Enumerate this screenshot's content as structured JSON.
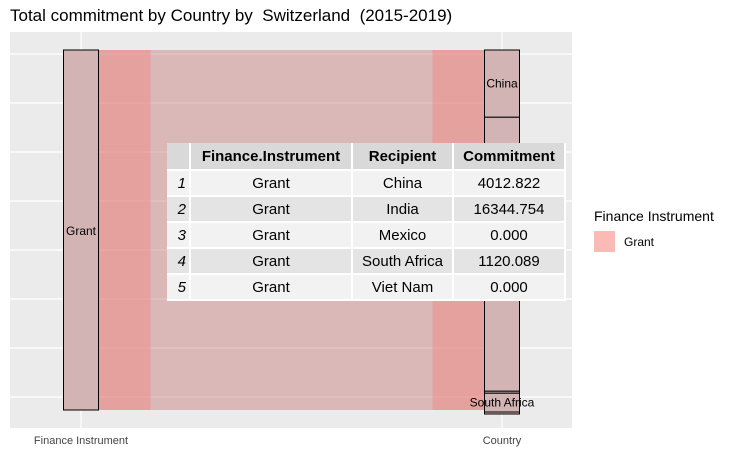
{
  "chart_data": {
    "type": "alluvial",
    "title": "Total commitment by Country by  Switzerland  (2015-2019)",
    "axes": [
      "Finance Instrument",
      "Country"
    ],
    "strata": {
      "Finance Instrument": [
        "Grant"
      ],
      "Country": [
        "China",
        "India",
        "Mexico",
        "South Africa",
        "Viet Nam"
      ]
    },
    "stratum_labels": {
      "Finance Instrument": [
        "Grant"
      ],
      "Country": [
        "China",
        "South Africa"
      ]
    },
    "flows": [
      {
        "from": "Grant",
        "to": "China",
        "value": 4012.822
      },
      {
        "from": "Grant",
        "to": "India",
        "value": 16344.754
      },
      {
        "from": "Grant",
        "to": "Mexico",
        "value": 0.0
      },
      {
        "from": "Grant",
        "to": "South Africa",
        "value": 1120.089
      },
      {
        "from": "Grant",
        "to": "Viet Nam",
        "value": 0.0
      }
    ],
    "legend": {
      "title": "Finance Instrument",
      "items": [
        "Grant"
      ],
      "position": "right"
    },
    "grid": true
  },
  "table": {
    "headers": [
      "Finance.Instrument",
      "Recipient",
      "Commitment"
    ],
    "rows": [
      {
        "index": "1",
        "instrument": "Grant",
        "recipient": "China",
        "commitment": "4012.822"
      },
      {
        "index": "2",
        "instrument": "Grant",
        "recipient": "India",
        "commitment": "16344.754"
      },
      {
        "index": "3",
        "instrument": "Grant",
        "recipient": "Mexico",
        "commitment": "0.000"
      },
      {
        "index": "4",
        "instrument": "Grant",
        "recipient": "South Africa",
        "commitment": "1120.089"
      },
      {
        "index": "5",
        "instrument": "Grant",
        "recipient": "Viet Nam",
        "commitment": "0.000"
      }
    ]
  },
  "colors": {
    "panel": "#ebebeb",
    "grid": "#ffffff",
    "flow": "#c77b7b",
    "grant_fill": "#f8766d",
    "stratum_fill": "#d3b4b4",
    "stratum_border": "#000000"
  }
}
